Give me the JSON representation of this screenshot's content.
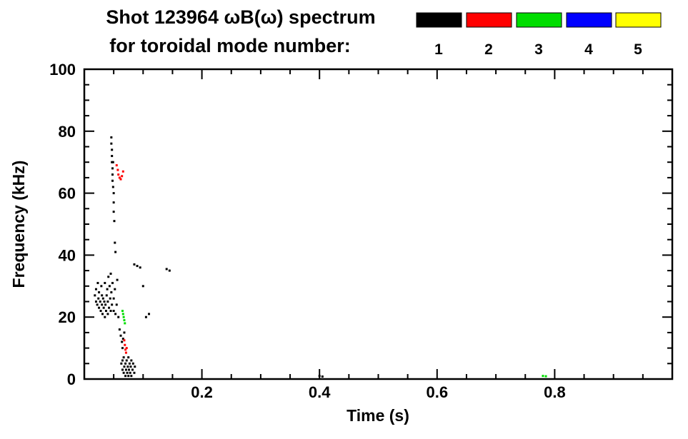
{
  "title": {
    "line1": "Shot 123964 ωB(ω) spectrum",
    "line2": "for toroidal mode number:"
  },
  "legend": {
    "entries": [
      {
        "label": "1",
        "color": "#000000"
      },
      {
        "label": "2",
        "#comment": "",
        "color": "#ff0000"
      },
      {
        "label": "3",
        "color": "#00dd00"
      },
      {
        "label": "4",
        "color": "#0000ff"
      },
      {
        "label": "5",
        "color": "#ffff00"
      }
    ]
  },
  "chart_data": {
    "type": "scatter",
    "title": "Shot 123964 ωB(ω) spectrum for toroidal mode number: 1 2 3 4 5",
    "xlabel": "Time (s)",
    "ylabel": "Frequency (kHz)",
    "xlim": [
      0.0,
      1.0
    ],
    "ylim": [
      0,
      100
    ],
    "xticks": [
      {
        "v": 0.2,
        "label": "0.2"
      },
      {
        "v": 0.4,
        "label": "0.4"
      },
      {
        "v": 0.6,
        "label": "0.6"
      },
      {
        "v": 0.8,
        "label": "0.8"
      }
    ],
    "yticks": [
      {
        "v": 0,
        "label": "0"
      },
      {
        "v": 20,
        "label": "20"
      },
      {
        "v": 40,
        "label": "40"
      },
      {
        "v": 60,
        "label": "60"
      },
      {
        "v": 80,
        "label": "80"
      },
      {
        "v": 100,
        "label": "100"
      }
    ],
    "x_minor_step": 0.05,
    "y_minor_step": 5,
    "grid": false,
    "legend_position": "top-right",
    "series": [
      {
        "name": "toroidal mode n=1",
        "color": "#000000",
        "points": [
          [
            0.018,
            27
          ],
          [
            0.02,
            25
          ],
          [
            0.02,
            29
          ],
          [
            0.022,
            24
          ],
          [
            0.023,
            31
          ],
          [
            0.024,
            26
          ],
          [
            0.025,
            23
          ],
          [
            0.025,
            28
          ],
          [
            0.027,
            25
          ],
          [
            0.028,
            22
          ],
          [
            0.029,
            30
          ],
          [
            0.03,
            24
          ],
          [
            0.03,
            27
          ],
          [
            0.031,
            21
          ],
          [
            0.032,
            26
          ],
          [
            0.033,
            23
          ],
          [
            0.034,
            25
          ],
          [
            0.035,
            20
          ],
          [
            0.035,
            31
          ],
          [
            0.036,
            24
          ],
          [
            0.037,
            22
          ],
          [
            0.038,
            27
          ],
          [
            0.039,
            29
          ],
          [
            0.04,
            21
          ],
          [
            0.04,
            25
          ],
          [
            0.041,
            33
          ],
          [
            0.042,
            23
          ],
          [
            0.043,
            30
          ],
          [
            0.044,
            26
          ],
          [
            0.045,
            22
          ],
          [
            0.045,
            34
          ],
          [
            0.046,
            28
          ],
          [
            0.047,
            24
          ],
          [
            0.048,
            31
          ],
          [
            0.05,
            22
          ],
          [
            0.05,
            26
          ],
          [
            0.052,
            29
          ],
          [
            0.053,
            21
          ],
          [
            0.055,
            24
          ],
          [
            0.056,
            32
          ],
          [
            0.058,
            20
          ],
          [
            0.046,
            78
          ],
          [
            0.046,
            76
          ],
          [
            0.047,
            74
          ],
          [
            0.047,
            72
          ],
          [
            0.047,
            70
          ],
          [
            0.048,
            68
          ],
          [
            0.048,
            66
          ],
          [
            0.048,
            64
          ],
          [
            0.049,
            70
          ],
          [
            0.049,
            62
          ],
          [
            0.05,
            60
          ],
          [
            0.05,
            57
          ],
          [
            0.05,
            54
          ],
          [
            0.051,
            51
          ],
          [
            0.052,
            44
          ],
          [
            0.053,
            41
          ],
          [
            0.085,
            37
          ],
          [
            0.09,
            36.5
          ],
          [
            0.095,
            36
          ],
          [
            0.14,
            35.5
          ],
          [
            0.145,
            35
          ],
          [
            0.06,
            16
          ],
          [
            0.062,
            14
          ],
          [
            0.064,
            12
          ],
          [
            0.065,
            10
          ],
          [
            0.066,
            13
          ],
          [
            0.068,
            15
          ],
          [
            0.063,
            5
          ],
          [
            0.065,
            3
          ],
          [
            0.065,
            6
          ],
          [
            0.067,
            2
          ],
          [
            0.067,
            7
          ],
          [
            0.068,
            4
          ],
          [
            0.07,
            1
          ],
          [
            0.07,
            5
          ],
          [
            0.071,
            3
          ],
          [
            0.072,
            6
          ],
          [
            0.073,
            2
          ],
          [
            0.074,
            4
          ],
          [
            0.075,
            1
          ],
          [
            0.075,
            7
          ],
          [
            0.076,
            3
          ],
          [
            0.077,
            5
          ],
          [
            0.078,
            2
          ],
          [
            0.079,
            4
          ],
          [
            0.08,
            1
          ],
          [
            0.08,
            6
          ],
          [
            0.082,
            3
          ],
          [
            0.083,
            5
          ],
          [
            0.085,
            2
          ],
          [
            0.086,
            4
          ],
          [
            0.1,
            30
          ],
          [
            0.105,
            20
          ],
          [
            0.11,
            21
          ],
          [
            0.4,
            1
          ],
          [
            0.405,
            0.8
          ]
        ]
      },
      {
        "name": "toroidal mode n=2",
        "color": "#ff0000",
        "points": [
          [
            0.055,
            69
          ],
          [
            0.057,
            67.5
          ],
          [
            0.058,
            66
          ],
          [
            0.06,
            65
          ],
          [
            0.062,
            64.5
          ],
          [
            0.064,
            65.5
          ],
          [
            0.066,
            67
          ],
          [
            0.068,
            12.5
          ],
          [
            0.069,
            11
          ],
          [
            0.07,
            9.5
          ],
          [
            0.071,
            8.5
          ],
          [
            0.072,
            10
          ]
        ]
      },
      {
        "name": "toroidal mode n=3",
        "color": "#00dd00",
        "points": [
          [
            0.065,
            22
          ],
          [
            0.066,
            21
          ],
          [
            0.067,
            20
          ],
          [
            0.068,
            19
          ],
          [
            0.069,
            18
          ],
          [
            0.78,
            1
          ],
          [
            0.785,
            0.9
          ]
        ]
      },
      {
        "name": "toroidal mode n=4",
        "color": "#0000ff",
        "points": []
      },
      {
        "name": "toroidal mode n=5",
        "color": "#ffff00",
        "points": []
      }
    ]
  }
}
